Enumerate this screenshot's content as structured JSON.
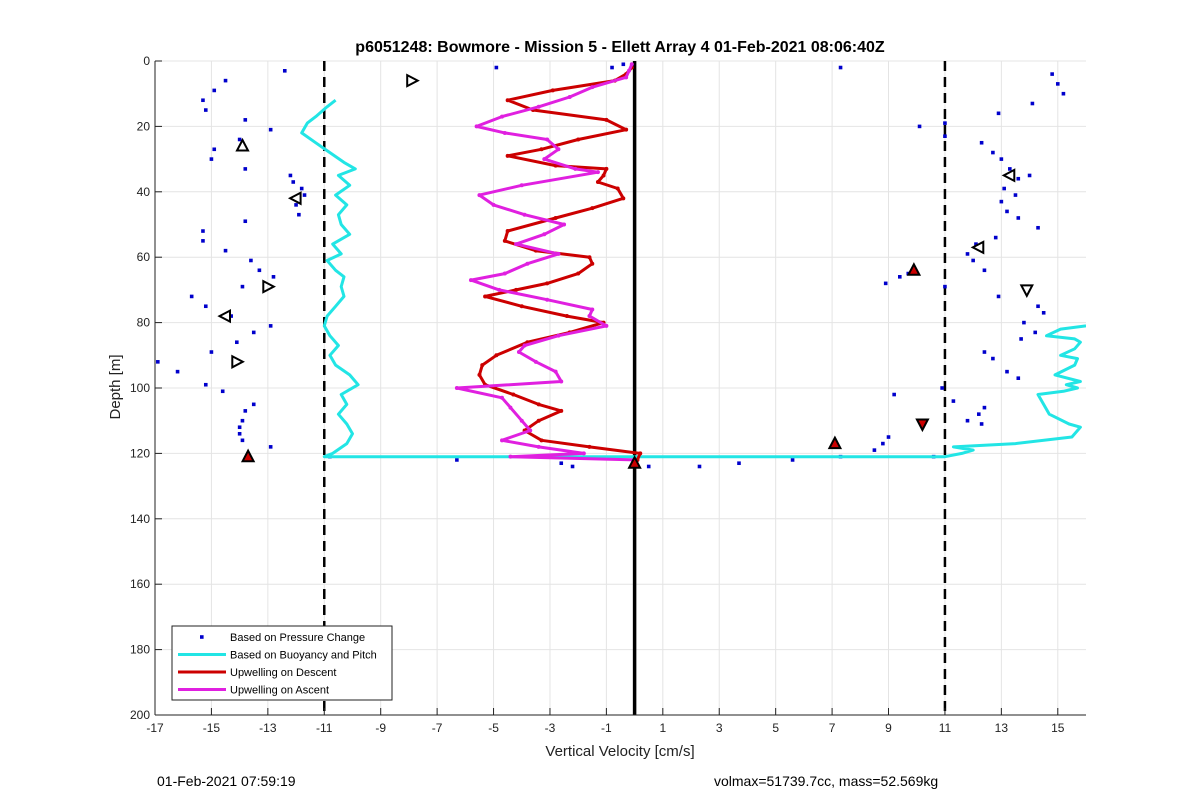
{
  "chart_data": {
    "type": "line",
    "title": "p6051248: Bowmore - Mission 5 - Ellett Array 4 01-Feb-2021 08:06:40Z",
    "xlabel": "Vertical Velocity [cm/s]",
    "ylabel": "Depth [m]",
    "xlim": [
      -17,
      16
    ],
    "ylim": [
      0,
      200
    ],
    "y_reversed": true,
    "grid": true,
    "xticks": [
      -17,
      -15,
      -13,
      -11,
      -9,
      -7,
      -5,
      -3,
      -1,
      1,
      3,
      5,
      7,
      9,
      11,
      13,
      15
    ],
    "yticks": [
      0,
      20,
      40,
      60,
      80,
      100,
      120,
      140,
      160,
      180,
      200
    ],
    "legend_position": "bottom-left",
    "reference_lines": [
      {
        "x": 0,
        "style": "solid",
        "color": "#000000"
      },
      {
        "x": -11,
        "style": "dashed",
        "color": "#000000"
      },
      {
        "x": 11,
        "style": "dashed",
        "color": "#000000"
      }
    ],
    "series": [
      {
        "name": "Based on Pressure Change",
        "style": "dots",
        "color": "#0000cc",
        "points": [
          [
            -14.5,
            6
          ],
          [
            -14.9,
            9
          ],
          [
            -15.3,
            12
          ],
          [
            -15.2,
            15
          ],
          [
            -12.4,
            3
          ],
          [
            -13.8,
            18
          ],
          [
            -12.9,
            21
          ],
          [
            -14.0,
            24
          ],
          [
            -14.9,
            27
          ],
          [
            -15.0,
            30
          ],
          [
            -13.8,
            33
          ],
          [
            -12.2,
            35
          ],
          [
            -12.1,
            37
          ],
          [
            -11.8,
            39
          ],
          [
            -11.7,
            41
          ],
          [
            -12.0,
            44
          ],
          [
            -11.9,
            47
          ],
          [
            -13.8,
            49
          ],
          [
            -15.3,
            52
          ],
          [
            -15.3,
            55
          ],
          [
            -14.5,
            58
          ],
          [
            -13.6,
            61
          ],
          [
            -13.3,
            64
          ],
          [
            -12.8,
            66
          ],
          [
            -13.9,
            69
          ],
          [
            -15.7,
            72
          ],
          [
            -15.2,
            75
          ],
          [
            -14.3,
            78
          ],
          [
            -12.9,
            81
          ],
          [
            -13.5,
            83
          ],
          [
            -14.1,
            86
          ],
          [
            -15.0,
            89
          ],
          [
            -16.9,
            92
          ],
          [
            -16.2,
            95
          ],
          [
            -15.2,
            99
          ],
          [
            -14.6,
            101
          ],
          [
            -13.5,
            105
          ],
          [
            -13.8,
            107
          ],
          [
            -13.9,
            110
          ],
          [
            -14.0,
            112
          ],
          [
            -14.0,
            114
          ],
          [
            -13.9,
            116
          ],
          [
            -12.9,
            118
          ],
          [
            -13.7,
            121
          ],
          [
            -10.8,
            121
          ],
          [
            -6.3,
            122
          ],
          [
            -2.6,
            123
          ],
          [
            -2.2,
            124
          ],
          [
            0.5,
            124
          ],
          [
            2.3,
            124
          ],
          [
            3.7,
            123
          ],
          [
            5.6,
            122
          ],
          [
            -4.9,
            2
          ],
          [
            -0.8,
            2
          ],
          [
            -0.4,
            1
          ],
          [
            7.3,
            2
          ],
          [
            14.8,
            4
          ],
          [
            15.0,
            7
          ],
          [
            15.2,
            10
          ],
          [
            14.1,
            13
          ],
          [
            12.9,
            16
          ],
          [
            10.1,
            20
          ],
          [
            11.0,
            19
          ],
          [
            11.0,
            23
          ],
          [
            12.3,
            25
          ],
          [
            12.7,
            28
          ],
          [
            13.0,
            30
          ],
          [
            13.3,
            33
          ],
          [
            13.6,
            36
          ],
          [
            14.0,
            35
          ],
          [
            13.1,
            39
          ],
          [
            13.5,
            41
          ],
          [
            13.0,
            43
          ],
          [
            13.2,
            46
          ],
          [
            13.6,
            48
          ],
          [
            14.3,
            51
          ],
          [
            12.8,
            54
          ],
          [
            12.1,
            56
          ],
          [
            11.8,
            59
          ],
          [
            12.0,
            61
          ],
          [
            12.4,
            64
          ],
          [
            9.4,
            66
          ],
          [
            9.7,
            65
          ],
          [
            8.9,
            68
          ],
          [
            11.0,
            69
          ],
          [
            12.9,
            72
          ],
          [
            14.3,
            75
          ],
          [
            14.5,
            77
          ],
          [
            13.8,
            80
          ],
          [
            14.2,
            83
          ],
          [
            13.7,
            85
          ],
          [
            12.4,
            89
          ],
          [
            12.7,
            91
          ],
          [
            13.2,
            95
          ],
          [
            13.6,
            97
          ],
          [
            10.9,
            100
          ],
          [
            9.2,
            102
          ],
          [
            11.3,
            104
          ],
          [
            12.4,
            106
          ],
          [
            12.2,
            108
          ],
          [
            11.8,
            110
          ],
          [
            12.3,
            111
          ],
          [
            9.0,
            115
          ],
          [
            8.8,
            117
          ],
          [
            8.5,
            119
          ],
          [
            7.3,
            121
          ],
          [
            10.6,
            121
          ]
        ]
      },
      {
        "name": "Based on Buoyancy and Pitch",
        "style": "line",
        "color": "#22e5e5",
        "points": [
          [
            -10.6,
            12
          ],
          [
            -10.9,
            14
          ],
          [
            -11.3,
            17
          ],
          [
            -11.6,
            19
          ],
          [
            -11.8,
            22
          ],
          [
            -11.3,
            25
          ],
          [
            -10.8,
            28
          ],
          [
            -10.3,
            31
          ],
          [
            -9.9,
            33
          ],
          [
            -10.5,
            35
          ],
          [
            -10.1,
            38
          ],
          [
            -10.6,
            41
          ],
          [
            -10.2,
            44
          ],
          [
            -10.5,
            47
          ],
          [
            -10.4,
            50
          ],
          [
            -10.1,
            53
          ],
          [
            -10.7,
            56
          ],
          [
            -10.4,
            59
          ],
          [
            -10.9,
            61
          ],
          [
            -10.6,
            64
          ],
          [
            -10.3,
            66
          ],
          [
            -10.4,
            69
          ],
          [
            -10.3,
            72
          ],
          [
            -10.6,
            75
          ],
          [
            -10.9,
            78
          ],
          [
            -11.0,
            81
          ],
          [
            -10.8,
            84
          ],
          [
            -10.5,
            87
          ],
          [
            -10.8,
            90
          ],
          [
            -10.6,
            93
          ],
          [
            -10.1,
            96
          ],
          [
            -9.8,
            99
          ],
          [
            -10.4,
            102
          ],
          [
            -10.2,
            105
          ],
          [
            -10.5,
            108
          ],
          [
            -10.2,
            111
          ],
          [
            -10.0,
            114
          ],
          [
            -10.2,
            117
          ],
          [
            -10.7,
            120
          ],
          [
            -11.0,
            121
          ],
          [
            -0.1,
            121
          ],
          [
            11.0,
            121
          ],
          [
            11.6,
            120
          ],
          [
            12.0,
            119
          ],
          [
            11.3,
            118
          ],
          [
            13.5,
            117
          ],
          [
            15.5,
            115
          ],
          [
            15.8,
            112
          ],
          [
            15.4,
            111
          ],
          [
            14.7,
            108
          ],
          [
            14.3,
            102
          ],
          [
            15.2,
            101
          ],
          [
            15.7,
            100
          ],
          [
            15.3,
            99
          ],
          [
            15.8,
            98
          ],
          [
            14.9,
            96
          ],
          [
            15.6,
            93
          ],
          [
            15.7,
            91
          ],
          [
            15.1,
            90
          ],
          [
            15.6,
            88
          ],
          [
            15.8,
            86
          ],
          [
            15.6,
            85
          ],
          [
            14.6,
            84
          ],
          [
            15.1,
            82
          ],
          [
            16.0,
            81
          ]
        ]
      },
      {
        "name": "Upwelling on Descent",
        "style": "line",
        "color": "#cc0000",
        "points": [
          [
            -0.1,
            2
          ],
          [
            -0.3,
            4
          ],
          [
            -0.7,
            6
          ],
          [
            -2.9,
            9
          ],
          [
            -4.5,
            12
          ],
          [
            -3.6,
            15
          ],
          [
            -1.0,
            18
          ],
          [
            -0.3,
            21
          ],
          [
            -2.0,
            24
          ],
          [
            -3.3,
            27
          ],
          [
            -4.5,
            29
          ],
          [
            -2.8,
            32
          ],
          [
            -1.0,
            33
          ],
          [
            -1.1,
            35
          ],
          [
            -1.3,
            37
          ],
          [
            -0.6,
            39
          ],
          [
            -0.4,
            42
          ],
          [
            -1.5,
            45
          ],
          [
            -2.8,
            48
          ],
          [
            -4.5,
            52
          ],
          [
            -4.6,
            55
          ],
          [
            -3.5,
            58
          ],
          [
            -1.6,
            60
          ],
          [
            -1.5,
            62
          ],
          [
            -2.0,
            65
          ],
          [
            -3.1,
            68
          ],
          [
            -4.2,
            70
          ],
          [
            -5.3,
            72
          ],
          [
            -4.0,
            75
          ],
          [
            -2.4,
            78
          ],
          [
            -1.1,
            80
          ],
          [
            -2.3,
            83
          ],
          [
            -3.8,
            86
          ],
          [
            -4.9,
            90
          ],
          [
            -5.4,
            93
          ],
          [
            -5.5,
            96
          ],
          [
            -5.3,
            99
          ],
          [
            -4.3,
            102
          ],
          [
            -3.4,
            105
          ],
          [
            -2.6,
            107
          ],
          [
            -3.4,
            110
          ],
          [
            -3.9,
            113
          ],
          [
            -3.3,
            116
          ],
          [
            -1.6,
            118
          ],
          [
            0.2,
            120
          ],
          [
            0.1,
            122
          ]
        ]
      },
      {
        "name": "Upwelling on Ascent",
        "style": "line",
        "color": "#e020e0",
        "points": [
          [
            -0.1,
            1
          ],
          [
            -0.2,
            3
          ],
          [
            -0.3,
            5
          ],
          [
            -1.5,
            8
          ],
          [
            -2.3,
            11
          ],
          [
            -3.4,
            14
          ],
          [
            -4.7,
            17
          ],
          [
            -5.6,
            20
          ],
          [
            -4.6,
            22
          ],
          [
            -3.1,
            24
          ],
          [
            -2.7,
            27
          ],
          [
            -3.2,
            30
          ],
          [
            -2.1,
            33
          ],
          [
            -1.3,
            34
          ],
          [
            -4.0,
            38
          ],
          [
            -5.5,
            41
          ],
          [
            -5.0,
            44
          ],
          [
            -3.9,
            47
          ],
          [
            -2.5,
            50
          ],
          [
            -3.2,
            53
          ],
          [
            -4.2,
            56
          ],
          [
            -2.7,
            59
          ],
          [
            -3.8,
            62
          ],
          [
            -4.6,
            65
          ],
          [
            -5.8,
            67
          ],
          [
            -4.8,
            70
          ],
          [
            -3.1,
            73
          ],
          [
            -1.5,
            76
          ],
          [
            -1.6,
            78
          ],
          [
            -1.0,
            81
          ],
          [
            -2.7,
            84
          ],
          [
            -3.9,
            87
          ],
          [
            -4.1,
            89
          ],
          [
            -3.5,
            92
          ],
          [
            -2.8,
            95
          ],
          [
            -2.6,
            98
          ],
          [
            -6.3,
            100
          ],
          [
            -4.7,
            103
          ],
          [
            -4.4,
            106
          ],
          [
            -4.0,
            110
          ],
          [
            -3.7,
            113
          ],
          [
            -4.7,
            116
          ],
          [
            -3.4,
            118
          ],
          [
            -1.8,
            120
          ],
          [
            -4.4,
            121
          ],
          [
            0.0,
            122
          ]
        ]
      }
    ],
    "markers": [
      {
        "symbol": "triangle-up",
        "fill": "none",
        "x": -13.9,
        "y": 26
      },
      {
        "symbol": "triangle-left",
        "fill": "none",
        "x": -12.0,
        "y": 42
      },
      {
        "symbol": "triangle-right",
        "fill": "none",
        "x": -13.0,
        "y": 69
      },
      {
        "symbol": "triangle-left",
        "fill": "none",
        "x": -14.5,
        "y": 78
      },
      {
        "symbol": "triangle-right",
        "fill": "none",
        "x": -14.1,
        "y": 92
      },
      {
        "symbol": "triangle-right",
        "fill": "none",
        "x": -7.9,
        "y": 6
      },
      {
        "symbol": "triangle-left",
        "fill": "none",
        "x": 13.3,
        "y": 35
      },
      {
        "symbol": "triangle-left",
        "fill": "none",
        "x": 12.2,
        "y": 57
      },
      {
        "symbol": "triangle-down",
        "fill": "none",
        "x": 13.9,
        "y": 70
      },
      {
        "symbol": "triangle-up",
        "fill": "#cc0000",
        "x": -13.7,
        "y": 121
      },
      {
        "symbol": "triangle-up",
        "fill": "#cc0000",
        "x": 0.0,
        "y": 123
      },
      {
        "symbol": "triangle-up",
        "fill": "#cc0000",
        "x": 9.9,
        "y": 64
      },
      {
        "symbol": "triangle-down",
        "fill": "#cc0000",
        "x": 10.2,
        "y": 111
      },
      {
        "symbol": "triangle-up",
        "fill": "#cc0000",
        "x": 7.1,
        "y": 117
      }
    ]
  },
  "footer": {
    "left": "01-Feb-2021 07:59:19",
    "right": "volmax=51739.7cc, mass=52.569kg"
  }
}
